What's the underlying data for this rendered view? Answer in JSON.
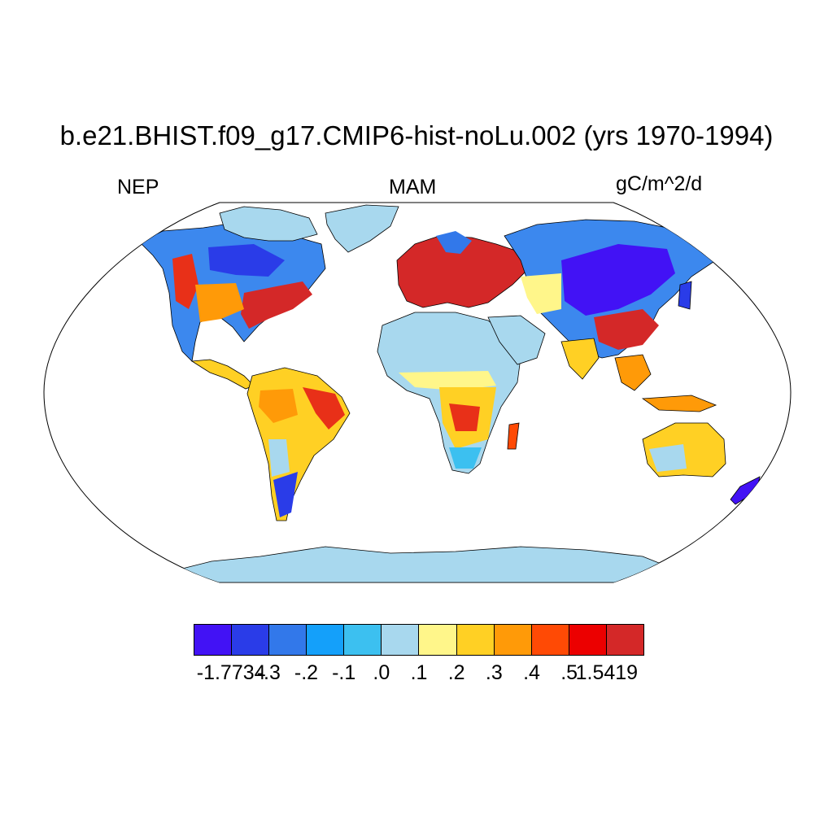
{
  "title": "b.e21.BHIST.f09_g17.CMIP6-hist-noLu.002 (yrs 1970-1994)",
  "left_string": "NEP",
  "center_string": "MAM",
  "right_string": "gC/m^2/d",
  "projection": "Robinson",
  "colorbar": {
    "colors": [
      "#4212f5",
      "#2a3ce8",
      "#3278ea",
      "#14a0fa",
      "#3cc0f0",
      "#a8d8ee",
      "#fff68a",
      "#ffd024",
      "#ff9a08",
      "#ff4a05",
      "#ec0000",
      "#d42828"
    ],
    "labels": [
      "-1.7734",
      "-.3",
      "-.2",
      "-.1",
      ".0",
      ".1",
      ".2",
      ".3",
      ".4",
      ".5",
      "1.5419"
    ]
  },
  "regions": [
    {
      "name": "eastern-siberia-mongolia",
      "value": "-1.7734"
    },
    {
      "name": "europe",
      "value": "1.5419"
    },
    {
      "name": "southeast-us",
      "value": ".5"
    },
    {
      "name": "sahara-arabia",
      "value": ".0"
    },
    {
      "name": "antarctica",
      "value": ".0"
    },
    {
      "name": "greenland",
      "value": ".0"
    }
  ]
}
